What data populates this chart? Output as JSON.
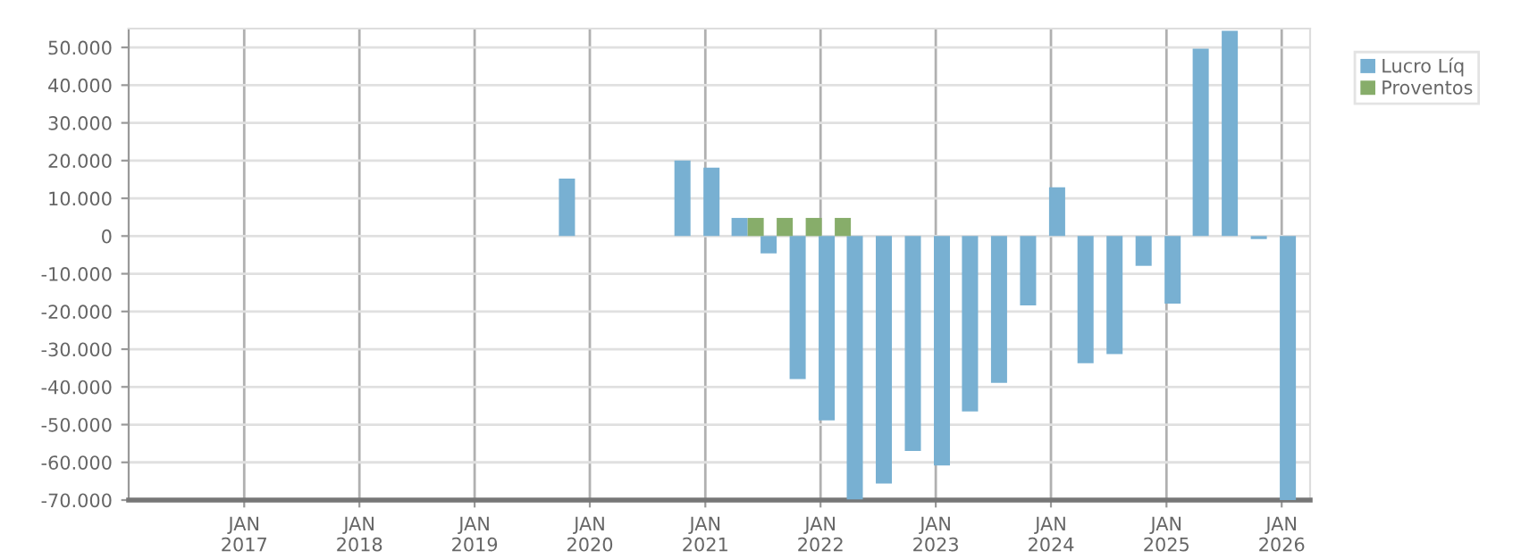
{
  "chart_data": {
    "type": "bar",
    "x": [
      "2019-11-15",
      "2020-02-15",
      "2020-05-15",
      "2020-08-15",
      "2020-11-15",
      "2021-02-15",
      "2021-05-15",
      "2021-08-15",
      "2021-11-15",
      "2022-02-15",
      "2022-05-15",
      "2022-08-15",
      "2022-11-15",
      "2023-02-15",
      "2023-05-15",
      "2023-08-15",
      "2023-11-15",
      "2024-02-15",
      "2024-05-15",
      "2024-08-15",
      "2024-11-15",
      "2025-02-15",
      "2025-05-15",
      "2025-08-15",
      "2025-11-15",
      "2026-02-15"
    ],
    "series": [
      {
        "name": "Lucro Líq",
        "color": "#78b0d2",
        "values": [
          15200,
          null,
          null,
          null,
          20000,
          18100,
          4800,
          -4600,
          -37900,
          -48900,
          -69800,
          -65600,
          -57000,
          -60800,
          -46500,
          -38900,
          -18400,
          12900,
          -33700,
          -31300,
          -7900,
          -17900,
          49700,
          54400,
          -800,
          -70000
        ]
      },
      {
        "name": "Proventos",
        "color": "#87ad6a",
        "values": [
          0,
          null,
          null,
          null,
          0,
          0,
          4800,
          4800,
          4800,
          4800,
          0,
          0,
          0,
          0,
          0,
          0,
          0,
          0,
          0,
          0,
          0,
          0,
          0,
          0,
          0,
          0
        ]
      }
    ],
    "xlim": [
      "2016-01-01",
      "2026-04-01"
    ],
    "xticks": [
      {
        "value": "2017-01-01",
        "label": "JAN\n2017"
      },
      {
        "value": "2018-01-01",
        "label": "JAN\n2018"
      },
      {
        "value": "2019-01-01",
        "label": "JAN\n2019"
      },
      {
        "value": "2020-01-01",
        "label": "JAN\n2020"
      },
      {
        "value": "2021-01-01",
        "label": "JAN\n2021"
      },
      {
        "value": "2022-01-01",
        "label": "JAN\n2022"
      },
      {
        "value": "2023-01-01",
        "label": "JAN\n2023"
      },
      {
        "value": "2024-01-01",
        "label": "JAN\n2024"
      },
      {
        "value": "2025-01-01",
        "label": "JAN\n2025"
      },
      {
        "value": "2026-01-01",
        "label": "JAN\n2026"
      }
    ],
    "ylim": [
      -70000,
      55000
    ],
    "yticks": [
      {
        "value": -70000,
        "label": "-70.000"
      },
      {
        "value": -60000,
        "label": "-60.000"
      },
      {
        "value": -50000,
        "label": "-50.000"
      },
      {
        "value": -40000,
        "label": "-40.000"
      },
      {
        "value": -30000,
        "label": "-30.000"
      },
      {
        "value": -20000,
        "label": "-20.000"
      },
      {
        "value": -10000,
        "label": "-10.000"
      },
      {
        "value": 0,
        "label": "0"
      },
      {
        "value": 10000,
        "label": "10.000"
      },
      {
        "value": 20000,
        "label": "20.000"
      },
      {
        "value": 30000,
        "label": "30.000"
      },
      {
        "value": 40000,
        "label": "40.000"
      },
      {
        "value": 50000,
        "label": "50.000"
      }
    ],
    "grid": true,
    "legend": "top right"
  }
}
